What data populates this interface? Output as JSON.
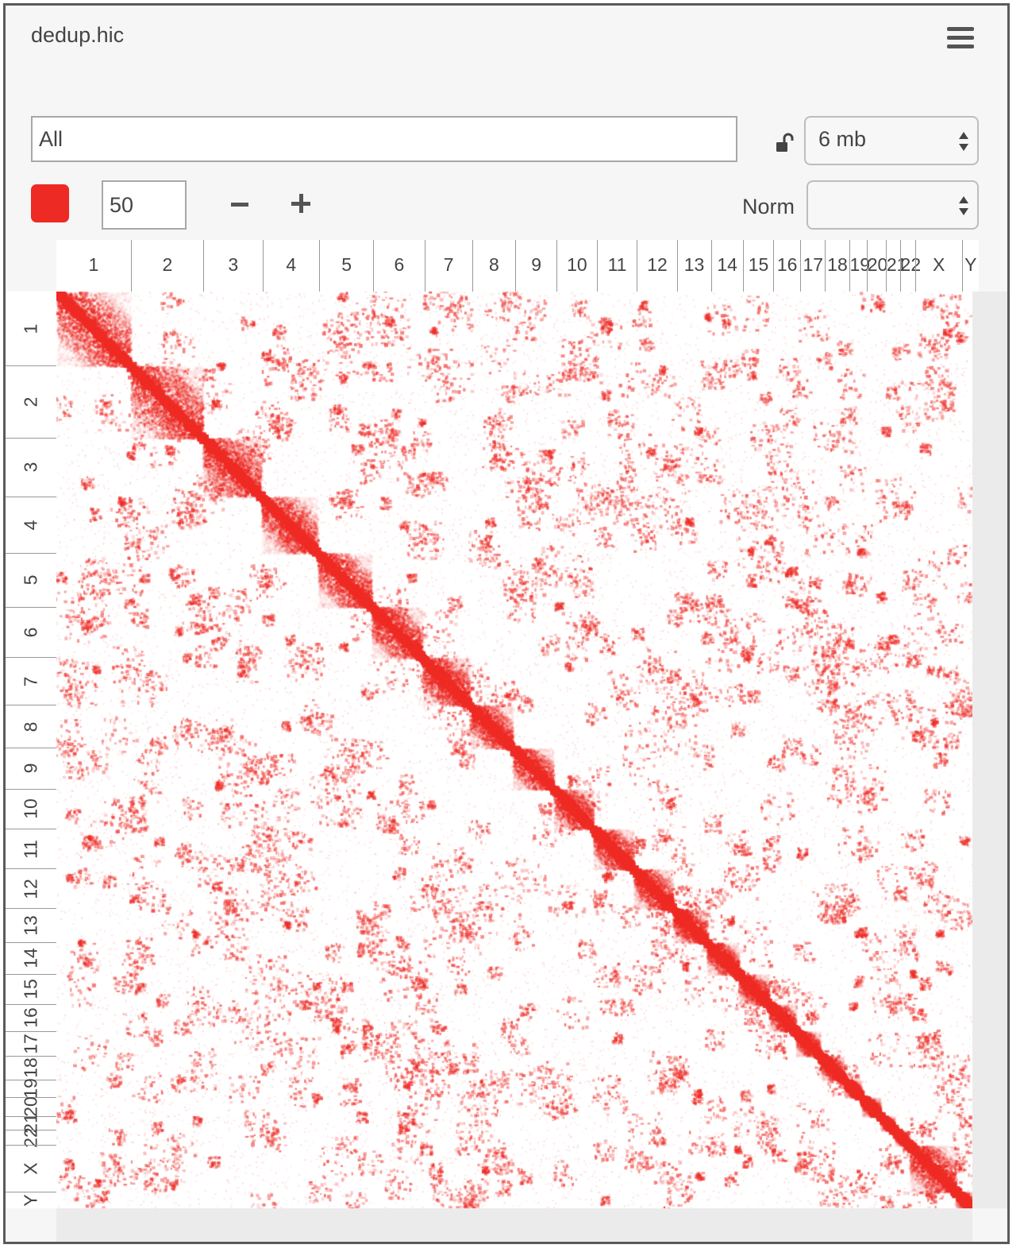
{
  "header": {
    "title": "dedup.hic",
    "menu_icon": "hamburger-menu-icon"
  },
  "locus": {
    "value": "All"
  },
  "resolution": {
    "value": "6 mb",
    "lock_icon": "unlocked-padlock-icon"
  },
  "color": {
    "value": "#ee2a24"
  },
  "color_scale": {
    "value": "50",
    "minus_icon": "minus-icon",
    "plus_icon": "plus-icon"
  },
  "normalization": {
    "label": "Norm",
    "value": ""
  },
  "chromosomes": [
    {
      "name": "1",
      "size": 249
    },
    {
      "name": "2",
      "size": 242
    },
    {
      "name": "3",
      "size": 198
    },
    {
      "name": "4",
      "size": 190
    },
    {
      "name": "5",
      "size": 181
    },
    {
      "name": "6",
      "size": 171
    },
    {
      "name": "7",
      "size": 159
    },
    {
      "name": "8",
      "size": 145
    },
    {
      "name": "9",
      "size": 138
    },
    {
      "name": "10",
      "size": 134
    },
    {
      "name": "11",
      "size": 135
    },
    {
      "name": "12",
      "size": 133
    },
    {
      "name": "13",
      "size": 114
    },
    {
      "name": "14",
      "size": 107
    },
    {
      "name": "15",
      "size": 102
    },
    {
      "name": "16",
      "size": 90
    },
    {
      "name": "17",
      "size": 83
    },
    {
      "name": "18",
      "size": 80
    },
    {
      "name": "19",
      "size": 59
    },
    {
      "name": "20",
      "size": 64
    },
    {
      "name": "21",
      "size": 47
    },
    {
      "name": "22",
      "size": 51
    },
    {
      "name": "X",
      "size": 156
    },
    {
      "name": "Y",
      "size": 57
    }
  ]
}
